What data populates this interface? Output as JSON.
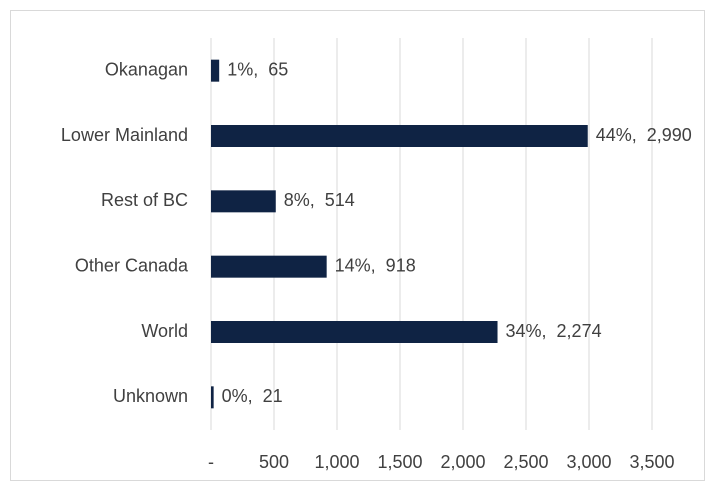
{
  "chart_data": {
    "type": "bar",
    "orientation": "horizontal",
    "categories": [
      "Okanagan",
      "Lower Mainland",
      "Rest of BC",
      "Other Canada",
      "World",
      "Unknown"
    ],
    "values": [
      65,
      2990,
      514,
      918,
      2274,
      21
    ],
    "value_labels": [
      "1%,  65",
      "44%,  2,990",
      "8%,  514",
      "14%,  918",
      "34%,  2,274",
      "0%,  21"
    ],
    "color": "#0f2344",
    "xlim": [
      0,
      3500
    ],
    "xticks": [
      {
        "value": 0,
        "label": "-"
      },
      500,
      {
        "value": 1000,
        "label": "1,000"
      },
      {
        "value": 1500,
        "label": "1,500"
      },
      {
        "value": 2000,
        "label": "2,000"
      },
      {
        "value": 2500,
        "label": "2,500"
      },
      {
        "value": 3000,
        "label": "3,000"
      },
      {
        "value": 3500,
        "label": "3,500"
      }
    ],
    "grid": true
  }
}
